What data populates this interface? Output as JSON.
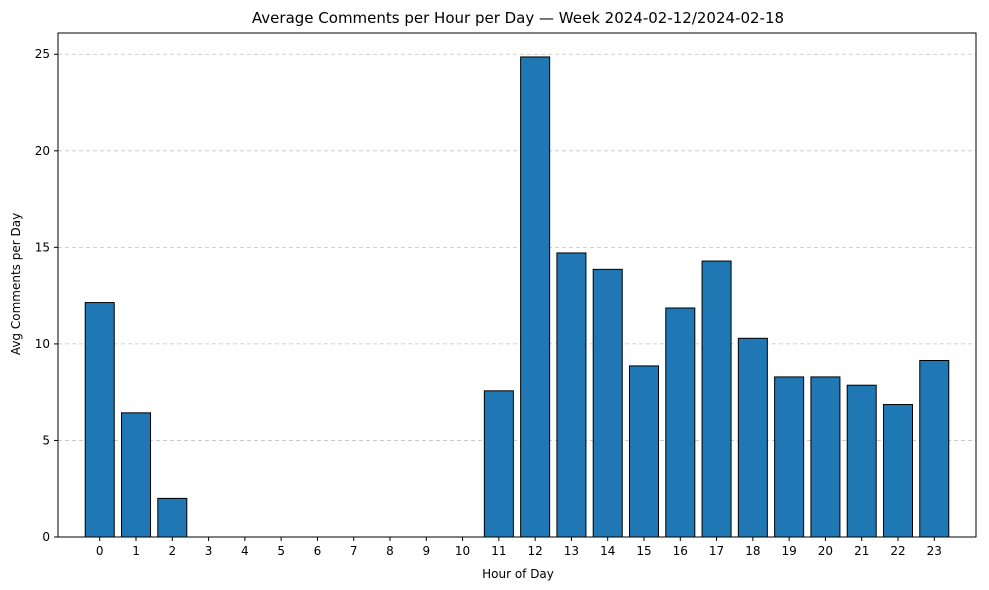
{
  "chart_data": {
    "type": "bar",
    "title": "Average Comments per Hour per Day — Week 2024-02-12/2024-02-18",
    "xlabel": "Hour of Day",
    "ylabel": "Avg Comments per Day",
    "categories": [
      "0",
      "1",
      "2",
      "3",
      "4",
      "5",
      "6",
      "7",
      "8",
      "9",
      "10",
      "11",
      "12",
      "13",
      "14",
      "15",
      "16",
      "17",
      "18",
      "19",
      "20",
      "21",
      "22",
      "23"
    ],
    "values": [
      12.14,
      6.43,
      2.0,
      0,
      0,
      0,
      0,
      0,
      0,
      0,
      0,
      7.57,
      24.86,
      14.71,
      13.86,
      8.86,
      11.86,
      14.29,
      10.29,
      8.29,
      8.29,
      7.86,
      6.86,
      9.14
    ],
    "ylim": [
      0,
      26.1
    ],
    "yticks": [
      0,
      5,
      10,
      15,
      20,
      25
    ],
    "grid": "y-dashed",
    "bar_color": "#1f77b4",
    "edge_color": "#000000"
  }
}
